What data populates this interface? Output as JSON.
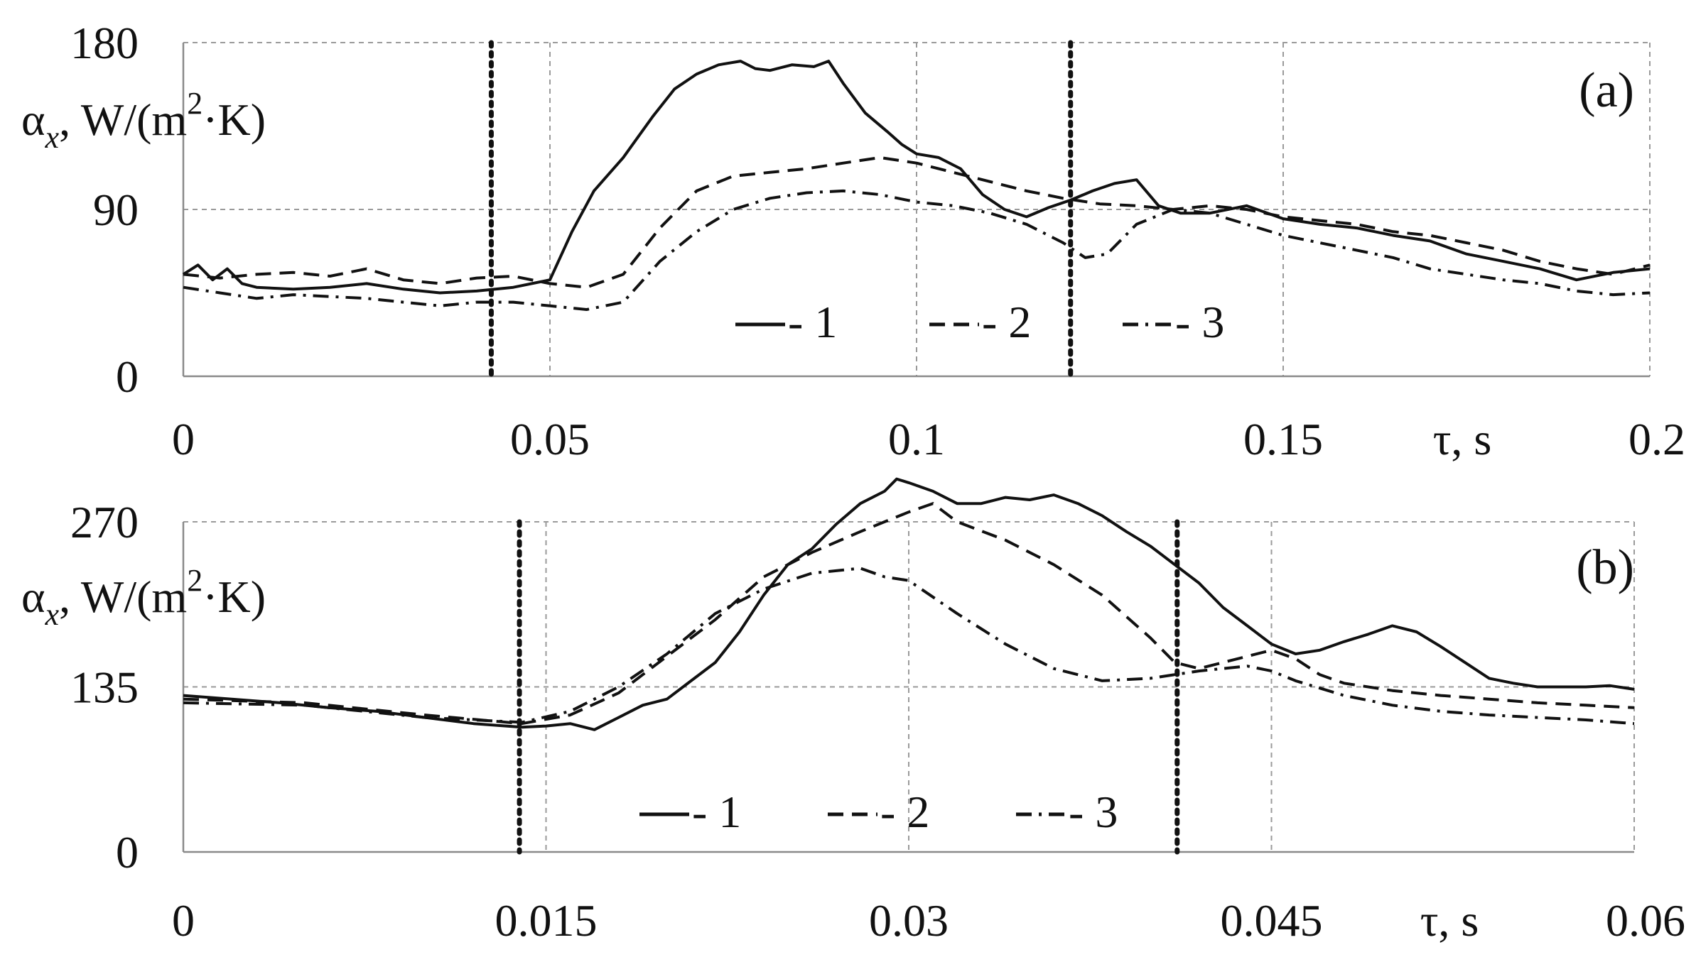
{
  "chart_data": [
    {
      "type": "line",
      "panel_label": "(a)",
      "ylabel_main": "α",
      "ylabel_sub": "x",
      "ylabel_rest_1": ", W/(m",
      "ylabel_sup": "2",
      "ylabel_rest_2": "·K)",
      "xlabel": "τ, s",
      "xlim": [
        0,
        0.2
      ],
      "ylim": [
        0,
        180
      ],
      "xticks": [
        "0",
        "0.05",
        "0.1",
        "0.15",
        "0.2"
      ],
      "xtick_values": [
        0,
        0.05,
        0.1,
        0.15,
        0.2
      ],
      "yticks": [
        "0",
        "90",
        "180"
      ],
      "ytick_values": [
        0,
        90,
        180
      ],
      "grid": true,
      "markers_x": [
        0.042,
        0.121
      ],
      "legend": [
        {
          "label": "- 1",
          "dash": "solid"
        },
        {
          "label": "- 2",
          "dash": "dashed"
        },
        {
          "label": "- 3",
          "dash": "dashdot"
        }
      ],
      "series": [
        {
          "name": "1",
          "x": [
            0,
            0.002,
            0.004,
            0.006,
            0.008,
            0.01,
            0.015,
            0.02,
            0.025,
            0.03,
            0.035,
            0.04,
            0.045,
            0.05,
            0.053,
            0.056,
            0.06,
            0.064,
            0.067,
            0.07,
            0.073,
            0.076,
            0.078,
            0.08,
            0.083,
            0.086,
            0.088,
            0.09,
            0.093,
            0.096,
            0.098,
            0.1,
            0.103,
            0.106,
            0.109,
            0.112,
            0.115,
            0.118,
            0.121,
            0.124,
            0.127,
            0.13,
            0.133,
            0.136,
            0.14,
            0.145,
            0.15,
            0.155,
            0.16,
            0.165,
            0.17,
            0.175,
            0.18,
            0.185,
            0.19,
            0.195,
            0.2
          ],
          "y": [
            55,
            60,
            52,
            58,
            50,
            48,
            47,
            48,
            50,
            47,
            45,
            46,
            48,
            52,
            78,
            100,
            118,
            140,
            155,
            163,
            168,
            170,
            166,
            165,
            168,
            167,
            170,
            158,
            142,
            132,
            125,
            120,
            118,
            112,
            98,
            90,
            86,
            91,
            95,
            100,
            104,
            106,
            92,
            88,
            88,
            92,
            85,
            82,
            80,
            76,
            73,
            66,
            62,
            58,
            52,
            56,
            58
          ]
        },
        {
          "name": "2",
          "x": [
            0,
            0.005,
            0.01,
            0.015,
            0.02,
            0.025,
            0.03,
            0.035,
            0.04,
            0.045,
            0.05,
            0.055,
            0.06,
            0.065,
            0.07,
            0.075,
            0.08,
            0.085,
            0.09,
            0.095,
            0.1,
            0.105,
            0.11,
            0.115,
            0.12,
            0.125,
            0.13,
            0.135,
            0.14,
            0.145,
            0.15,
            0.155,
            0.16,
            0.165,
            0.17,
            0.175,
            0.18,
            0.185,
            0.19,
            0.195,
            0.2
          ],
          "y": [
            55,
            53,
            55,
            56,
            54,
            58,
            52,
            50,
            53,
            54,
            50,
            48,
            55,
            80,
            100,
            108,
            110,
            112,
            115,
            118,
            115,
            110,
            105,
            100,
            96,
            93,
            92,
            90,
            92,
            90,
            86,
            84,
            82,
            78,
            76,
            72,
            68,
            62,
            58,
            55,
            60
          ]
        },
        {
          "name": "3",
          "x": [
            0,
            0.005,
            0.01,
            0.015,
            0.02,
            0.025,
            0.03,
            0.035,
            0.04,
            0.045,
            0.05,
            0.055,
            0.06,
            0.065,
            0.07,
            0.075,
            0.08,
            0.085,
            0.09,
            0.095,
            0.1,
            0.105,
            0.11,
            0.115,
            0.12,
            0.123,
            0.126,
            0.13,
            0.135,
            0.14,
            0.145,
            0.15,
            0.155,
            0.16,
            0.165,
            0.17,
            0.175,
            0.18,
            0.185,
            0.19,
            0.195,
            0.2
          ],
          "y": [
            48,
            45,
            42,
            44,
            43,
            42,
            40,
            38,
            40,
            40,
            38,
            36,
            40,
            62,
            78,
            90,
            96,
            99,
            100,
            98,
            94,
            92,
            88,
            82,
            72,
            64,
            66,
            82,
            90,
            88,
            82,
            76,
            72,
            68,
            64,
            58,
            55,
            52,
            50,
            46,
            44,
            45
          ]
        }
      ]
    },
    {
      "type": "line",
      "panel_label": "(b)",
      "ylabel_main": "α",
      "ylabel_sub": "x",
      "ylabel_rest_1": ", W/(m",
      "ylabel_sup": "2",
      "ylabel_rest_2": "·K)",
      "xlabel": "τ, s",
      "xlim": [
        0,
        0.06
      ],
      "ylim": [
        0,
        270
      ],
      "xticks": [
        "0",
        "0.015",
        "0.03",
        "0.045",
        "0.06"
      ],
      "xtick_values": [
        0,
        0.015,
        0.03,
        0.045,
        0.06
      ],
      "yticks": [
        "0",
        "135",
        "270"
      ],
      "ytick_values": [
        0,
        135,
        270
      ],
      "grid": true,
      "markers_x": [
        0.0139,
        0.0411
      ],
      "legend": [
        {
          "label": "- 1",
          "dash": "solid"
        },
        {
          "label": "- 2",
          "dash": "dashed"
        },
        {
          "label": "- 3",
          "dash": "dashdot"
        }
      ],
      "series": [
        {
          "name": "1",
          "x": [
            0,
            0.002,
            0.004,
            0.006,
            0.008,
            0.01,
            0.012,
            0.014,
            0.015,
            0.016,
            0.017,
            0.018,
            0.019,
            0.02,
            0.021,
            0.022,
            0.023,
            0.024,
            0.025,
            0.026,
            0.027,
            0.028,
            0.029,
            0.0295,
            0.03,
            0.031,
            0.032,
            0.033,
            0.034,
            0.035,
            0.036,
            0.037,
            0.038,
            0.039,
            0.04,
            0.041,
            0.042,
            0.043,
            0.044,
            0.045,
            0.046,
            0.047,
            0.048,
            0.049,
            0.05,
            0.051,
            0.052,
            0.053,
            0.054,
            0.055,
            0.056,
            0.057,
            0.058,
            0.059,
            0.06
          ],
          "y": [
            128,
            125,
            122,
            118,
            115,
            110,
            105,
            102,
            103,
            105,
            100,
            110,
            120,
            125,
            140,
            155,
            180,
            210,
            235,
            248,
            268,
            285,
            295,
            305,
            302,
            295,
            285,
            285,
            290,
            288,
            292,
            285,
            275,
            262,
            250,
            235,
            220,
            200,
            185,
            170,
            162,
            165,
            172,
            178,
            185,
            180,
            168,
            155,
            142,
            138,
            135,
            135,
            135,
            136,
            133
          ]
        },
        {
          "name": "2",
          "x": [
            0,
            0.005,
            0.01,
            0.014,
            0.016,
            0.018,
            0.02,
            0.022,
            0.024,
            0.026,
            0.028,
            0.03,
            0.031,
            0.032,
            0.034,
            0.036,
            0.038,
            0.04,
            0.041,
            0.042,
            0.043,
            0.044,
            0.045,
            0.046,
            0.047,
            0.048,
            0.05,
            0.052,
            0.054,
            0.056,
            0.058,
            0.06
          ],
          "y": [
            125,
            122,
            112,
            105,
            112,
            130,
            160,
            190,
            225,
            245,
            262,
            278,
            285,
            270,
            255,
            235,
            210,
            175,
            155,
            150,
            155,
            160,
            165,
            158,
            145,
            138,
            132,
            128,
            125,
            122,
            120,
            118
          ]
        },
        {
          "name": "3",
          "x": [
            0,
            0.005,
            0.01,
            0.014,
            0.016,
            0.018,
            0.02,
            0.022,
            0.024,
            0.026,
            0.027,
            0.028,
            0.029,
            0.03,
            0.032,
            0.034,
            0.036,
            0.038,
            0.04,
            0.042,
            0.043,
            0.044,
            0.045,
            0.046,
            0.048,
            0.05,
            0.052,
            0.054,
            0.056,
            0.058,
            0.06
          ],
          "y": [
            122,
            120,
            110,
            106,
            115,
            135,
            162,
            195,
            215,
            228,
            230,
            232,
            225,
            222,
            195,
            170,
            150,
            140,
            142,
            148,
            150,
            152,
            148,
            140,
            128,
            120,
            115,
            112,
            110,
            108,
            105
          ]
        }
      ]
    }
  ]
}
